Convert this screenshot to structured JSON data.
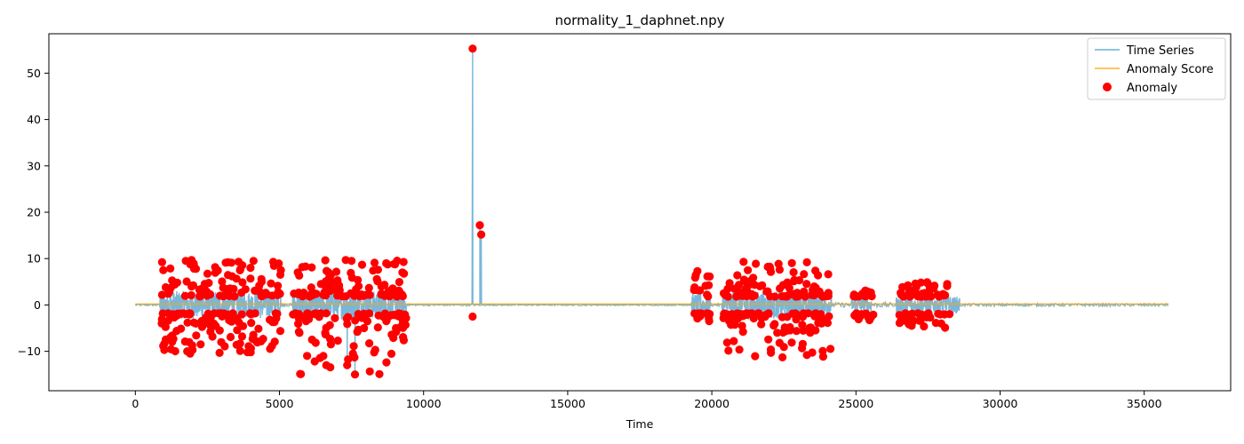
{
  "chart_data": {
    "type": "line",
    "title": "normality_1_daphnet.npy",
    "xlabel": "Time",
    "ylabel": "",
    "xlim": [
      -3000,
      38000
    ],
    "ylim": [
      -18.5,
      58.5
    ],
    "xticks": [
      0,
      5000,
      10000,
      15000,
      20000,
      25000,
      30000,
      35000
    ],
    "yticks": [
      -10,
      0,
      10,
      20,
      30,
      40,
      50
    ],
    "grid": false,
    "legend_position": "top-right",
    "series": [
      {
        "name": "Time Series",
        "kind": "line",
        "color": "#6baed6",
        "segments": [
          {
            "x_range": [
              0,
              850
            ],
            "amplitude": 0.2
          },
          {
            "x_range": [
              850,
              5050
            ],
            "amplitude": 3.0
          },
          {
            "x_range": [
              5050,
              5450
            ],
            "amplitude": 0.3
          },
          {
            "x_range": [
              5450,
              9400
            ],
            "amplitude": 3.0
          },
          {
            "x_range": [
              9400,
              11650
            ],
            "amplitude": 0.2
          },
          {
            "x_range": [
              11650,
              12050
            ],
            "amplitude": 0.2
          },
          {
            "x_range": [
              12050,
              19300
            ],
            "amplitude": 0.15
          },
          {
            "x_range": [
              19300,
              19950
            ],
            "amplitude": 2.5
          },
          {
            "x_range": [
              19950,
              20350
            ],
            "amplitude": 0.3
          },
          {
            "x_range": [
              20350,
              24150
            ],
            "amplitude": 3.0
          },
          {
            "x_range": [
              24150,
              24850
            ],
            "amplitude": 0.5
          },
          {
            "x_range": [
              24850,
              25550
            ],
            "amplitude": 1.5
          },
          {
            "x_range": [
              25550,
              26400
            ],
            "amplitude": 0.5
          },
          {
            "x_range": [
              26400,
              28600
            ],
            "amplitude": 1.8
          },
          {
            "x_range": [
              28600,
              35850
            ],
            "amplitude": 0.3
          }
        ],
        "peaks": [
          {
            "x": 11700,
            "y": 55.3
          },
          {
            "x": 11950,
            "y": 17.2
          },
          {
            "x": 12000,
            "y": 15.0
          },
          {
            "x": 7350,
            "y": -13.0
          },
          {
            "x": 7620,
            "y": -15.0
          }
        ]
      },
      {
        "name": "Anomaly Score",
        "kind": "line",
        "color": "#ffa500",
        "x_range": [
          0,
          35850
        ],
        "y": 0.2
      },
      {
        "name": "Anomaly",
        "kind": "scatter",
        "color": "#ff0000",
        "clusters": [
          {
            "x_range": [
              900,
              5050
            ],
            "y_range": [
              -10.5,
              9.7
            ]
          },
          {
            "x_range": [
              5450,
              9400
            ],
            "y_range": [
              -15.0,
              9.7
            ]
          },
          {
            "x_range": [
              19350,
              19950
            ],
            "y_range": [
              -3.5,
              7.3
            ]
          },
          {
            "x_range": [
              20400,
              24150
            ],
            "y_range": [
              -11.3,
              9.3
            ]
          },
          {
            "x_range": [
              24850,
              25550
            ],
            "y_range": [
              -3.5,
              3.5
            ]
          },
          {
            "x_range": [
              26500,
              28250
            ],
            "y_range": [
              -5.0,
              5.0
            ]
          }
        ],
        "points": [
          {
            "x": 11700,
            "y": 55.3
          },
          {
            "x": 11950,
            "y": 17.2
          },
          {
            "x": 12000,
            "y": 15.2
          },
          {
            "x": 11700,
            "y": -2.5
          },
          {
            "x": 1750,
            "y": 9.5
          },
          {
            "x": 1950,
            "y": 9.7
          },
          {
            "x": 4100,
            "y": 9.5
          },
          {
            "x": 7300,
            "y": 9.7
          },
          {
            "x": 7500,
            "y": 9.5
          },
          {
            "x": 21100,
            "y": 9.3
          },
          {
            "x": 23300,
            "y": 9.2
          },
          {
            "x": 19500,
            "y": 7.3
          },
          {
            "x": 7350,
            "y": -13.0
          },
          {
            "x": 7620,
            "y": -15.0
          },
          {
            "x": 7550,
            "y": -10.5
          },
          {
            "x": 4000,
            "y": -10.2
          },
          {
            "x": 1800,
            "y": -10.0
          },
          {
            "x": 1900,
            "y": -10.5
          },
          {
            "x": 22450,
            "y": -11.3
          },
          {
            "x": 23300,
            "y": -10.8
          },
          {
            "x": 26550,
            "y": 2.6
          },
          {
            "x": 25600,
            "y": -2.1
          }
        ]
      }
    ]
  }
}
